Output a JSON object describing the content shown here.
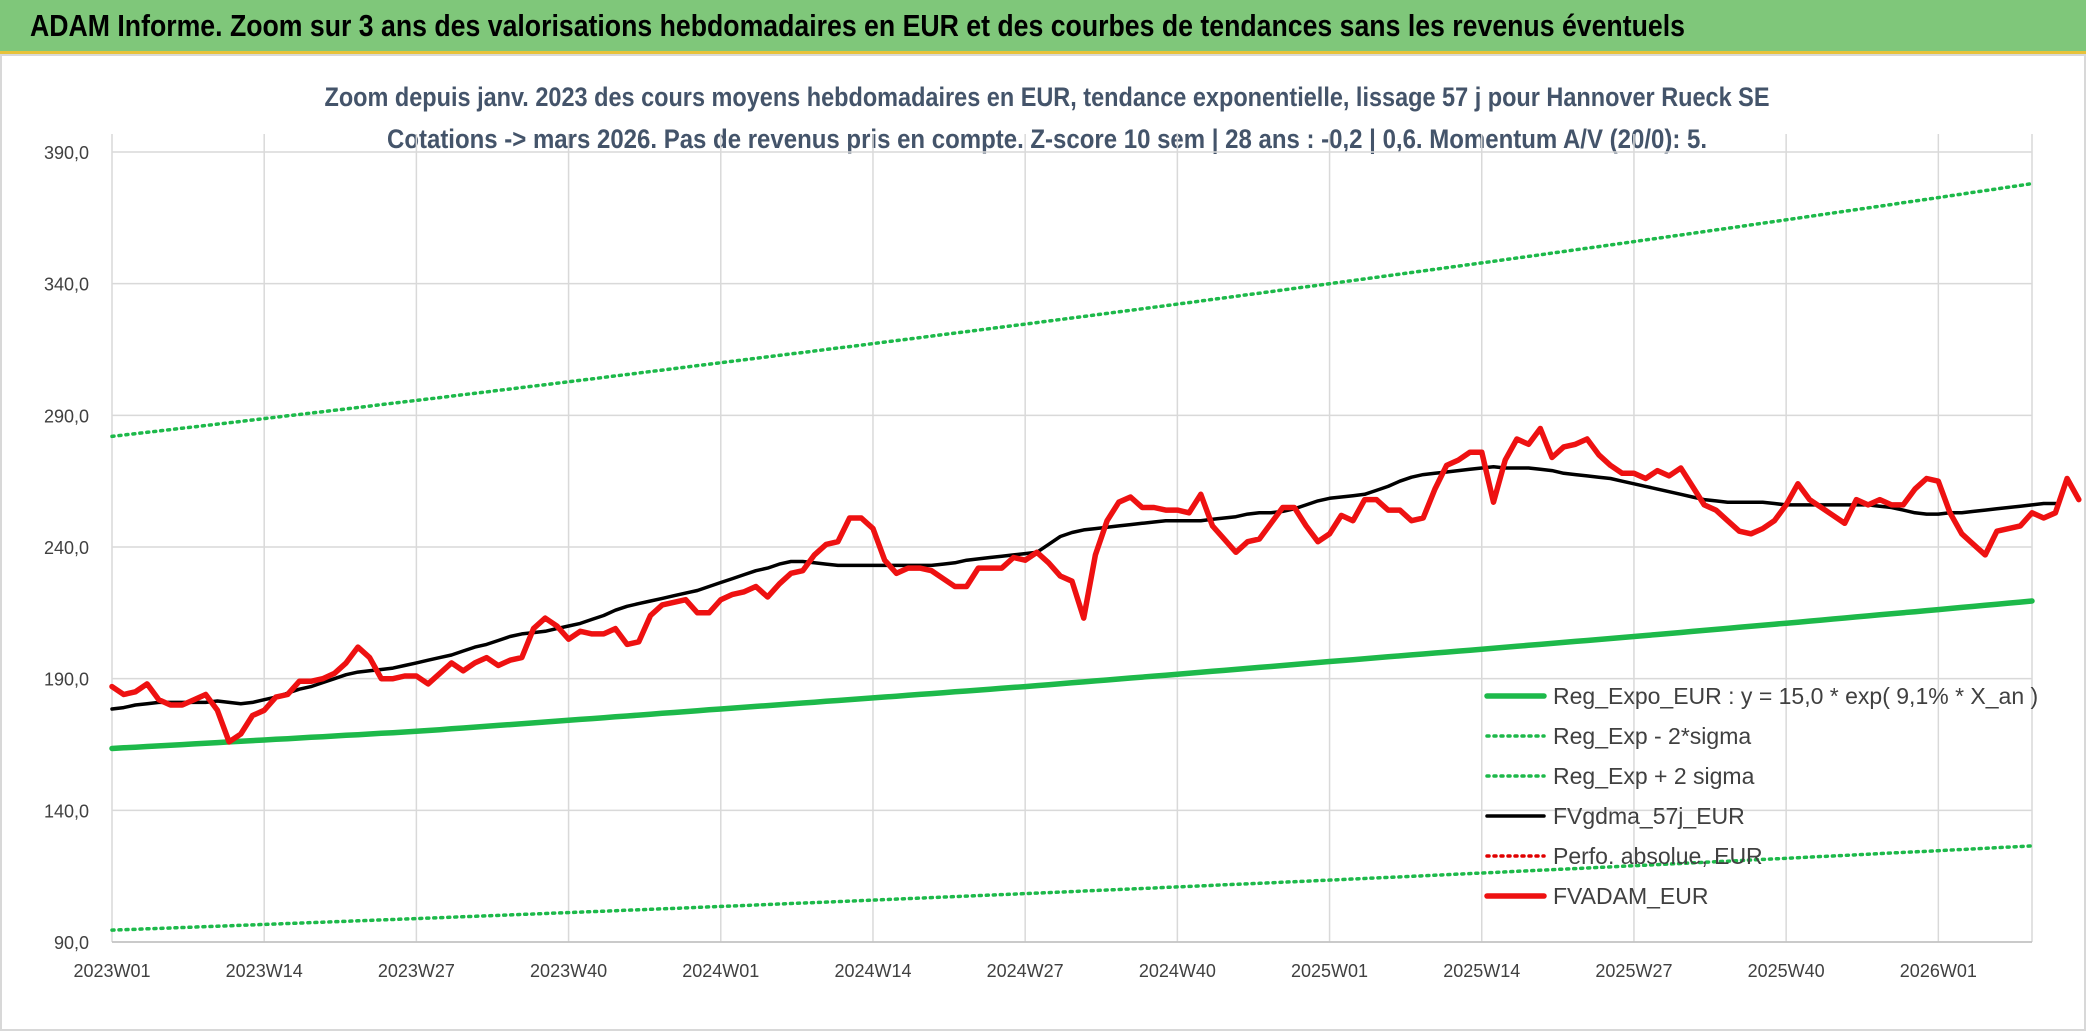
{
  "banner": {
    "text": "ADAM Informe. Zoom sur 3 ans des valorisations hebdomadaires en EUR et des courbes de tendances sans les revenus éventuels"
  },
  "chart_data": {
    "type": "line",
    "title": "Zoom depuis janv. 2023 des cours moyens hebdomadaires en EUR, tendance exponentielle, lissage 57 j pour Hannover Rueck SE",
    "subtitle": "Cotations -> mars 2026. Pas de revenus pris en compte. Z-score 10 sem | 28 ans : -0,2 | 0,6. Momentum A/V (20/0): 5.",
    "ylim": [
      90,
      390
    ],
    "y_ticks": [
      "90,0",
      "140,0",
      "190,0",
      "240,0",
      "290,0",
      "340,0",
      "390,0"
    ],
    "x_ticks": [
      "2023W01",
      "2023W14",
      "2023W27",
      "2023W40",
      "2024W01",
      "2024W14",
      "2024W27",
      "2024W40",
      "2025W01",
      "2025W14",
      "2025W27",
      "2025W40",
      "2026W01"
    ],
    "grid": true,
    "legend_position": "bottom-right",
    "colors": {
      "reg": "#1db94a",
      "sigma": "#1db94a",
      "ma": "#000000",
      "perfo": "#e00000",
      "adam": "#ee1111"
    },
    "series": [
      {
        "name": "Reg_Expo_EUR : y = 15,0 * exp( 9,1% *  X_an )",
        "style": "solid-thick",
        "color": "#1db94a",
        "anchors": [
          [
            0,
            163.5
          ],
          [
            26,
            170
          ],
          [
            52,
            178.5
          ],
          [
            78,
            187
          ],
          [
            104,
            196.5
          ],
          [
            130,
            206
          ],
          [
            164,
            219.5
          ]
        ]
      },
      {
        "name": "Reg_Exp - 2*sigma",
        "style": "dotted",
        "color": "#1db94a",
        "anchors": [
          [
            0,
            94.5
          ],
          [
            52,
            103.5
          ],
          [
            104,
            113.5
          ],
          [
            164,
            126.5
          ]
        ]
      },
      {
        "name": "Reg_Exp + 2 sigma",
        "style": "dotted",
        "color": "#1db94a",
        "anchors": [
          [
            0,
            282
          ],
          [
            52,
            310
          ],
          [
            104,
            340
          ],
          [
            164,
            378
          ]
        ]
      },
      {
        "name": "FVgdma_57j_EUR",
        "style": "solid",
        "color": "#000000",
        "values": [
          178.5,
          179,
          180,
          180.5,
          181,
          181,
          181,
          181,
          181,
          181.5,
          181,
          180.5,
          181,
          182,
          183,
          184.5,
          186,
          187,
          188.5,
          190,
          191.5,
          192.5,
          193,
          193.5,
          194,
          195,
          196,
          197,
          198,
          199,
          200.5,
          202,
          203,
          204.5,
          206,
          207,
          207.5,
          208,
          209,
          210,
          211,
          212.5,
          214,
          216,
          217.5,
          218.5,
          219.5,
          220.5,
          221.5,
          222.5,
          223.5,
          225,
          226.5,
          228,
          229.5,
          231,
          232,
          233.5,
          234.5,
          234.5,
          234,
          233.5,
          233,
          233,
          233,
          233,
          233,
          233,
          233,
          233,
          233,
          233.5,
          234,
          235,
          235.5,
          236,
          236.5,
          237,
          237.5,
          238,
          241,
          244,
          245.5,
          246.5,
          247,
          247.5,
          248,
          248.5,
          249,
          249.5,
          250,
          250,
          250,
          250,
          250.5,
          251,
          251.5,
          252.5,
          253,
          253,
          253.5,
          254.5,
          256,
          257.5,
          258.5,
          259,
          259.5,
          260,
          261.5,
          263,
          265,
          266.5,
          267.5,
          268,
          268.5,
          269,
          269.5,
          270,
          270.5,
          270,
          270,
          270,
          269.5,
          269,
          268,
          267.5,
          267,
          266.5,
          266,
          265,
          264,
          263,
          262,
          261,
          260,
          259,
          258,
          257.5,
          257,
          257,
          257,
          257,
          256.5,
          256,
          256,
          256,
          256,
          256,
          256,
          256,
          256,
          255.5,
          255,
          254,
          253,
          252.5,
          252.5,
          253,
          253,
          253.5,
          254,
          254.5,
          255,
          255.5,
          256,
          256.5,
          256.5
        ]
      },
      {
        "name": "Perfo. absolue, EUR",
        "style": "dotted",
        "color": "#e00000",
        "values": []
      },
      {
        "name": "FVADAM_EUR",
        "style": "solid-thick",
        "color": "#ee1111",
        "values": [
          187,
          184,
          185,
          188,
          182,
          180,
          180,
          182,
          184,
          178,
          166,
          169,
          176,
          178,
          183,
          184,
          189,
          189,
          190,
          192,
          196,
          202,
          198,
          190,
          190,
          191,
          191,
          188,
          192,
          196,
          193,
          196,
          198,
          195,
          197,
          198,
          209,
          213,
          210,
          205,
          208,
          207,
          207,
          209,
          203,
          204,
          214,
          218,
          219,
          220,
          215,
          215,
          220,
          222,
          223,
          225,
          221,
          226,
          230,
          231,
          237,
          241,
          242,
          251,
          251,
          247,
          235,
          230,
          232,
          232,
          231,
          228,
          225,
          225,
          232,
          232,
          232,
          236,
          235,
          238,
          234,
          229,
          227,
          213,
          237,
          250,
          257,
          259,
          255,
          255,
          254,
          254,
          253,
          260,
          248,
          243,
          238,
          242,
          243,
          249,
          255,
          255,
          248,
          242,
          245,
          252,
          250,
          258,
          258,
          254,
          254,
          250,
          251,
          262,
          271,
          273,
          276,
          276,
          257,
          273,
          281,
          279,
          285,
          274,
          278,
          279,
          281,
          275,
          271,
          268,
          268,
          266,
          269,
          267,
          270,
          263,
          256,
          254,
          250,
          246,
          245,
          247,
          250,
          256,
          264,
          258,
          255,
          252,
          249,
          258,
          256,
          258,
          256,
          256,
          262,
          266,
          265,
          253,
          245,
          241,
          237,
          246,
          247,
          248,
          253,
          251,
          253,
          266,
          258
        ]
      }
    ]
  }
}
